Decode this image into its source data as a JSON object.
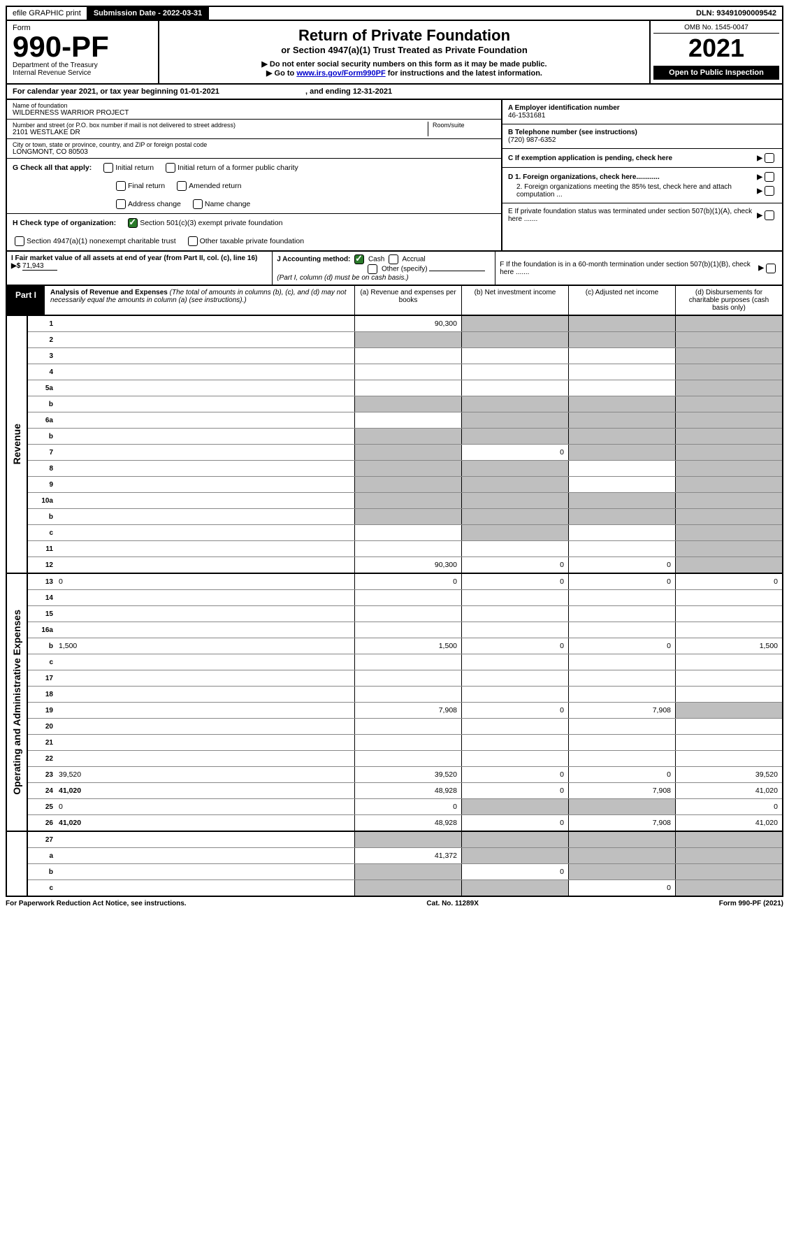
{
  "topbar": {
    "efile": "efile GRAPHIC print",
    "submission_label": "Submission Date - 2022-03-31",
    "dln": "DLN: 93491090009542"
  },
  "header": {
    "form_label": "Form",
    "form_number": "990-PF",
    "dept": "Department of the Treasury",
    "irs": "Internal Revenue Service",
    "title": "Return of Private Foundation",
    "subtitle": "or Section 4947(a)(1) Trust Treated as Private Foundation",
    "instr1": "▶ Do not enter social security numbers on this form as it may be made public.",
    "instr2_pre": "▶ Go to ",
    "instr2_link": "www.irs.gov/Form990PF",
    "instr2_post": " for instructions and the latest information.",
    "omb": "OMB No. 1545-0047",
    "year": "2021",
    "open": "Open to Public Inspection"
  },
  "calyear": {
    "text_pre": "For calendar year 2021, or tax year beginning ",
    "begin": "01-01-2021",
    "text_mid": " , and ending ",
    "end": "12-31-2021"
  },
  "entity": {
    "name_label": "Name of foundation",
    "name": "WILDERNESS WARRIOR PROJECT",
    "addr_label": "Number and street (or P.O. box number if mail is not delivered to street address)",
    "room_label": "Room/suite",
    "addr": "2101 WESTLAKE DR",
    "city_label": "City or town, state or province, country, and ZIP or foreign postal code",
    "city": "LONGMONT, CO  80503",
    "ein_label": "A Employer identification number",
    "ein": "46-1531681",
    "phone_label": "B Telephone number (see instructions)",
    "phone": "(720) 987-6352",
    "c_label": "C If exemption application is pending, check here",
    "d1": "D 1. Foreign organizations, check here............",
    "d2": "2. Foreign organizations meeting the 85% test, check here and attach computation ...",
    "e": "E  If private foundation status was terminated under section 507(b)(1)(A), check here .......",
    "f": "F  If the foundation is in a 60-month termination under section 507(b)(1)(B), check here .......",
    "g_label": "G Check all that apply:",
    "g_opts": [
      "Initial return",
      "Initial return of a former public charity",
      "Final return",
      "Amended return",
      "Address change",
      "Name change"
    ],
    "h_label": "H Check type of organization:",
    "h_opt1": "Section 501(c)(3) exempt private foundation",
    "h_opt2": "Section 4947(a)(1) nonexempt charitable trust",
    "h_opt3": "Other taxable private foundation",
    "i_label": "I Fair market value of all assets at end of year (from Part II, col. (c), line 16)",
    "i_val": "71,943",
    "j_label": "J Accounting method:",
    "j_cash": "Cash",
    "j_accrual": "Accrual",
    "j_other": "Other (specify)",
    "j_note": "(Part I, column (d) must be on cash basis.)"
  },
  "part1": {
    "label": "Part I",
    "title": "Analysis of Revenue and Expenses",
    "note": "(The total of amounts in columns (b), (c), and (d) may not necessarily equal the amounts in column (a) (see instructions).)",
    "col_a": "(a)   Revenue and expenses per books",
    "col_b": "(b)   Net investment income",
    "col_c": "(c)   Adjusted net income",
    "col_d": "(d)   Disbursements for charitable purposes (cash basis only)"
  },
  "sections": {
    "revenue": "Revenue",
    "expenses": "Operating and Administrative Expenses"
  },
  "rows": [
    {
      "n": "1",
      "d": "",
      "a": "90,300",
      "b": "",
      "c": "",
      "sb": true,
      "sc": true,
      "sd": true
    },
    {
      "n": "2",
      "d": "",
      "a": "",
      "b": "",
      "c": "",
      "sa": true,
      "sb": true,
      "sc": true,
      "sd": true
    },
    {
      "n": "3",
      "d": "",
      "a": "",
      "b": "",
      "c": "",
      "sd": true
    },
    {
      "n": "4",
      "d": "",
      "a": "",
      "b": "",
      "c": "",
      "sd": true
    },
    {
      "n": "5a",
      "d": "",
      "a": "",
      "b": "",
      "c": "",
      "sd": true
    },
    {
      "n": "b",
      "d": "",
      "a": "",
      "b": "",
      "c": "",
      "sa": true,
      "sb": true,
      "sc": true,
      "sd": true
    },
    {
      "n": "6a",
      "d": "",
      "a": "",
      "b": "",
      "c": "",
      "sb": true,
      "sc": true,
      "sd": true
    },
    {
      "n": "b",
      "d": "",
      "a": "",
      "b": "",
      "c": "",
      "sa": true,
      "sb": true,
      "sc": true,
      "sd": true
    },
    {
      "n": "7",
      "d": "",
      "a": "",
      "b": "0",
      "c": "",
      "sa": true,
      "sc": true,
      "sd": true
    },
    {
      "n": "8",
      "d": "",
      "a": "",
      "b": "",
      "c": "",
      "sa": true,
      "sb": true,
      "sd": true
    },
    {
      "n": "9",
      "d": "",
      "a": "",
      "b": "",
      "c": "",
      "sa": true,
      "sb": true,
      "sd": true
    },
    {
      "n": "10a",
      "d": "",
      "a": "",
      "b": "",
      "c": "",
      "sa": true,
      "sb": true,
      "sc": true,
      "sd": true
    },
    {
      "n": "b",
      "d": "",
      "a": "",
      "b": "",
      "c": "",
      "sa": true,
      "sb": true,
      "sc": true,
      "sd": true
    },
    {
      "n": "c",
      "d": "",
      "a": "",
      "b": "",
      "c": "",
      "sb": true,
      "sd": true
    },
    {
      "n": "11",
      "d": "",
      "a": "",
      "b": "",
      "c": "",
      "sd": true
    },
    {
      "n": "12",
      "d": "",
      "bold": true,
      "a": "90,300",
      "b": "0",
      "c": "0",
      "sd": true
    }
  ],
  "exp_rows": [
    {
      "n": "13",
      "d": "0",
      "a": "0",
      "b": "0",
      "c": "0"
    },
    {
      "n": "14",
      "d": "",
      "a": "",
      "b": "",
      "c": ""
    },
    {
      "n": "15",
      "d": "",
      "a": "",
      "b": "",
      "c": ""
    },
    {
      "n": "16a",
      "d": "",
      "a": "",
      "b": "",
      "c": ""
    },
    {
      "n": "b",
      "d": "1,500",
      "a": "1,500",
      "b": "0",
      "c": "0"
    },
    {
      "n": "c",
      "d": "",
      "a": "",
      "b": "",
      "c": ""
    },
    {
      "n": "17",
      "d": "",
      "a": "",
      "b": "",
      "c": ""
    },
    {
      "n": "18",
      "d": "",
      "a": "",
      "b": "",
      "c": ""
    },
    {
      "n": "19",
      "d": "",
      "a": "7,908",
      "b": "0",
      "c": "7,908",
      "sd": true
    },
    {
      "n": "20",
      "d": "",
      "a": "",
      "b": "",
      "c": ""
    },
    {
      "n": "21",
      "d": "",
      "a": "",
      "b": "",
      "c": ""
    },
    {
      "n": "22",
      "d": "",
      "a": "",
      "b": "",
      "c": ""
    },
    {
      "n": "23",
      "d": "39,520",
      "a": "39,520",
      "b": "0",
      "c": "0"
    },
    {
      "n": "24",
      "d": "41,020",
      "bold": true,
      "a": "48,928",
      "b": "0",
      "c": "7,908"
    },
    {
      "n": "25",
      "d": "0",
      "a": "0",
      "b": "",
      "c": "",
      "sb": true,
      "sc": true
    },
    {
      "n": "26",
      "d": "41,020",
      "bold": true,
      "a": "48,928",
      "b": "0",
      "c": "7,908"
    }
  ],
  "bottom_rows": [
    {
      "n": "27",
      "d": "",
      "a": "",
      "b": "",
      "c": "",
      "sa": true,
      "sb": true,
      "sc": true,
      "sd": true
    },
    {
      "n": "a",
      "d": "",
      "bold": true,
      "a": "41,372",
      "b": "",
      "c": "",
      "sb": true,
      "sc": true,
      "sd": true
    },
    {
      "n": "b",
      "d": "",
      "bold": true,
      "a": "",
      "b": "0",
      "c": "",
      "sa": true,
      "sc": true,
      "sd": true
    },
    {
      "n": "c",
      "d": "",
      "bold": true,
      "a": "",
      "b": "",
      "c": "0",
      "sa": true,
      "sb": true,
      "sd": true
    }
  ],
  "footer": {
    "left": "For Paperwork Reduction Act Notice, see instructions.",
    "mid": "Cat. No. 11289X",
    "right": "Form 990-PF (2021)"
  }
}
